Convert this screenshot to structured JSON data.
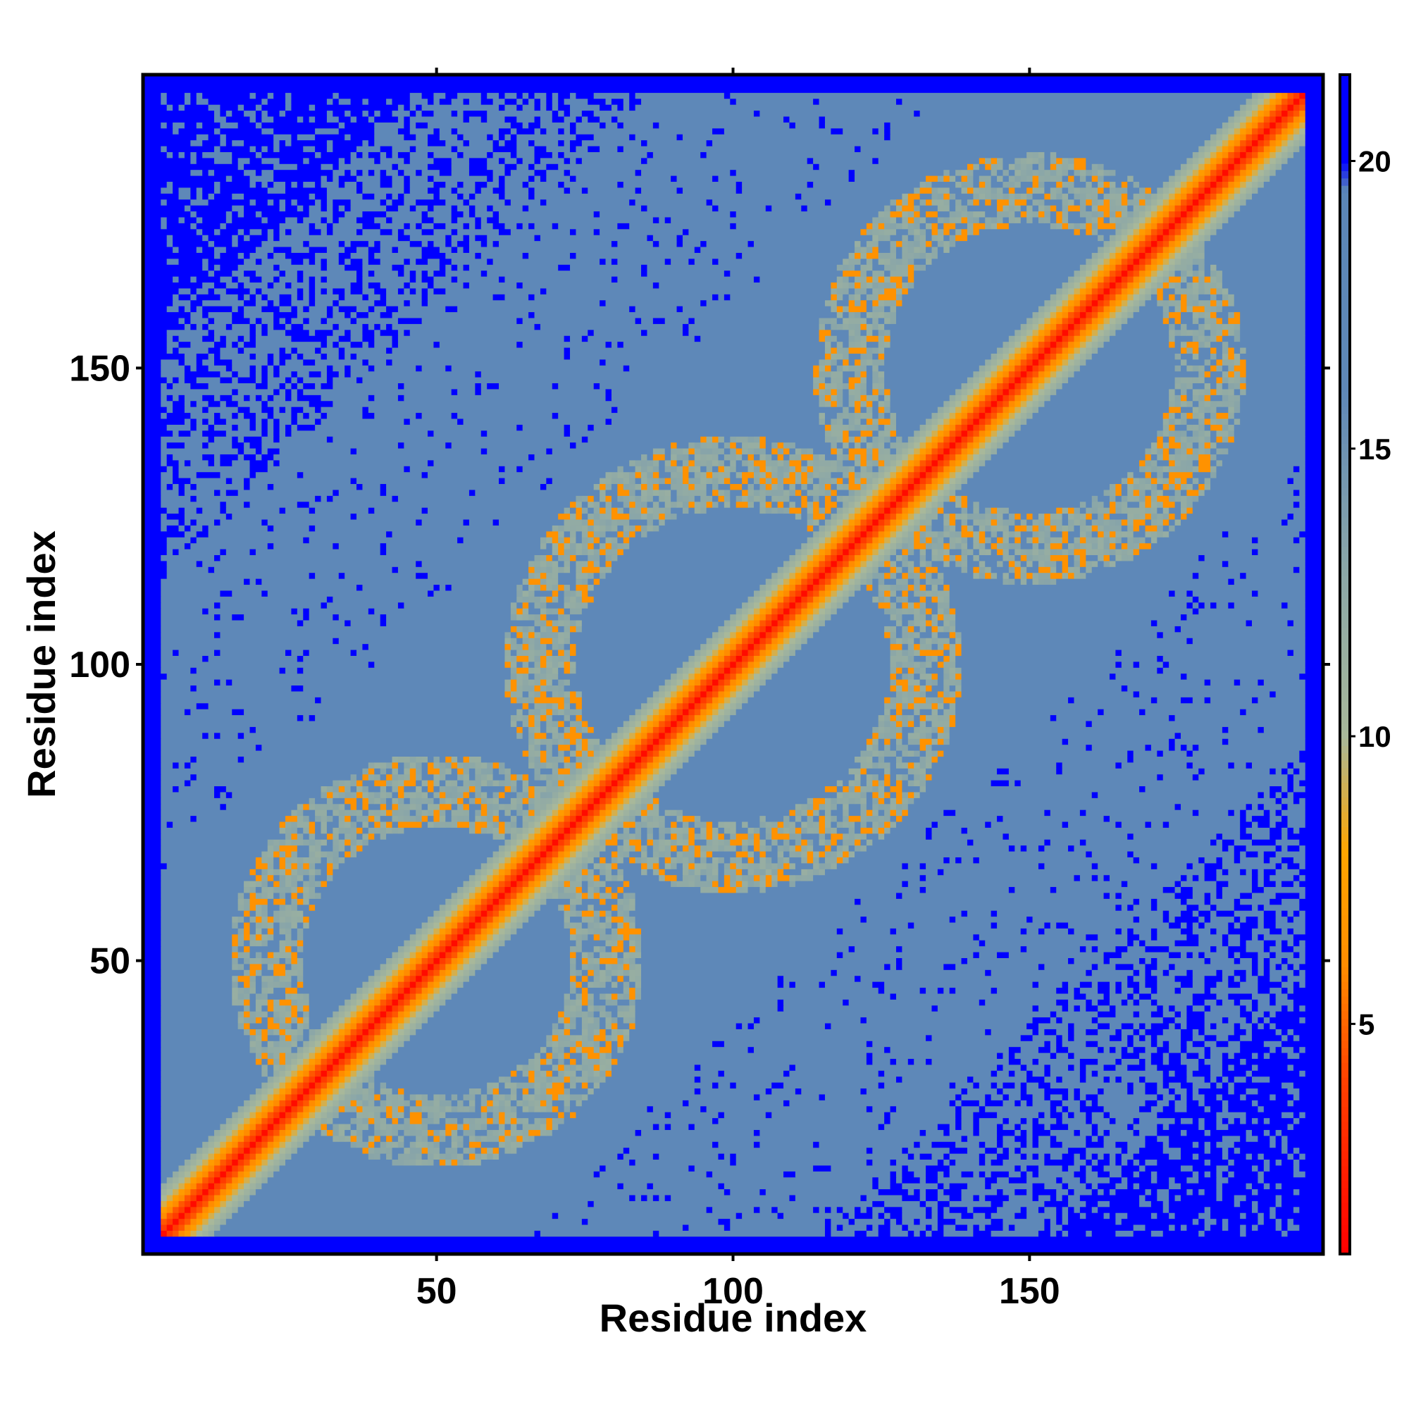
{
  "chart_data": {
    "type": "heatmap",
    "title": "",
    "xlabel": "Residue index",
    "ylabel": "Residue index",
    "n_residues": 199,
    "xlim": [
      1,
      199
    ],
    "ylim": [
      1,
      199
    ],
    "x_ticks": [
      {
        "value": 50,
        "label": "50"
      },
      {
        "value": 100,
        "label": "100"
      },
      {
        "value": 150,
        "label": "150"
      }
    ],
    "y_ticks": [
      {
        "value": 50,
        "label": "50"
      },
      {
        "value": 100,
        "label": "100"
      },
      {
        "value": 150,
        "label": "150"
      }
    ],
    "colorbar": {
      "range": [
        1,
        21.5
      ],
      "ticks": [
        {
          "value": 5,
          "label": "5"
        },
        {
          "value": 10,
          "label": "10"
        },
        {
          "value": 15,
          "label": "15"
        },
        {
          "value": 20,
          "label": "20"
        }
      ],
      "stops": [
        {
          "value": 1,
          "color": "#ff0000"
        },
        {
          "value": 4,
          "color": "#ff4000"
        },
        {
          "value": 6,
          "color": "#ff8c00"
        },
        {
          "value": 8,
          "color": "#ffa500"
        },
        {
          "value": 10,
          "color": "#a8b89a"
        },
        {
          "value": 13,
          "color": "#8aa6a8"
        },
        {
          "value": 16,
          "color": "#5f88b8"
        },
        {
          "value": 19.5,
          "color": "#5b86b8"
        },
        {
          "value": 20,
          "color": "#0000ff"
        },
        {
          "value": 21.5,
          "color": "#0000ff"
        }
      ]
    },
    "colors": {
      "diagonal": "#ff0000",
      "contact": "#ff8c00",
      "intermediate": "#a8b89a",
      "background": "#5b86b8",
      "far": "#0000ff"
    },
    "pattern": {
      "diagonal": "distance ~1-4 along i = j, orange band for |i-j| <= 2",
      "contact_bands": "orange contact rings centered near (50,50), (100,100), (150,150) with off-diagonal arcs",
      "far_region": "blue (>20) mainly near plot edges and in scattered patches"
    }
  }
}
